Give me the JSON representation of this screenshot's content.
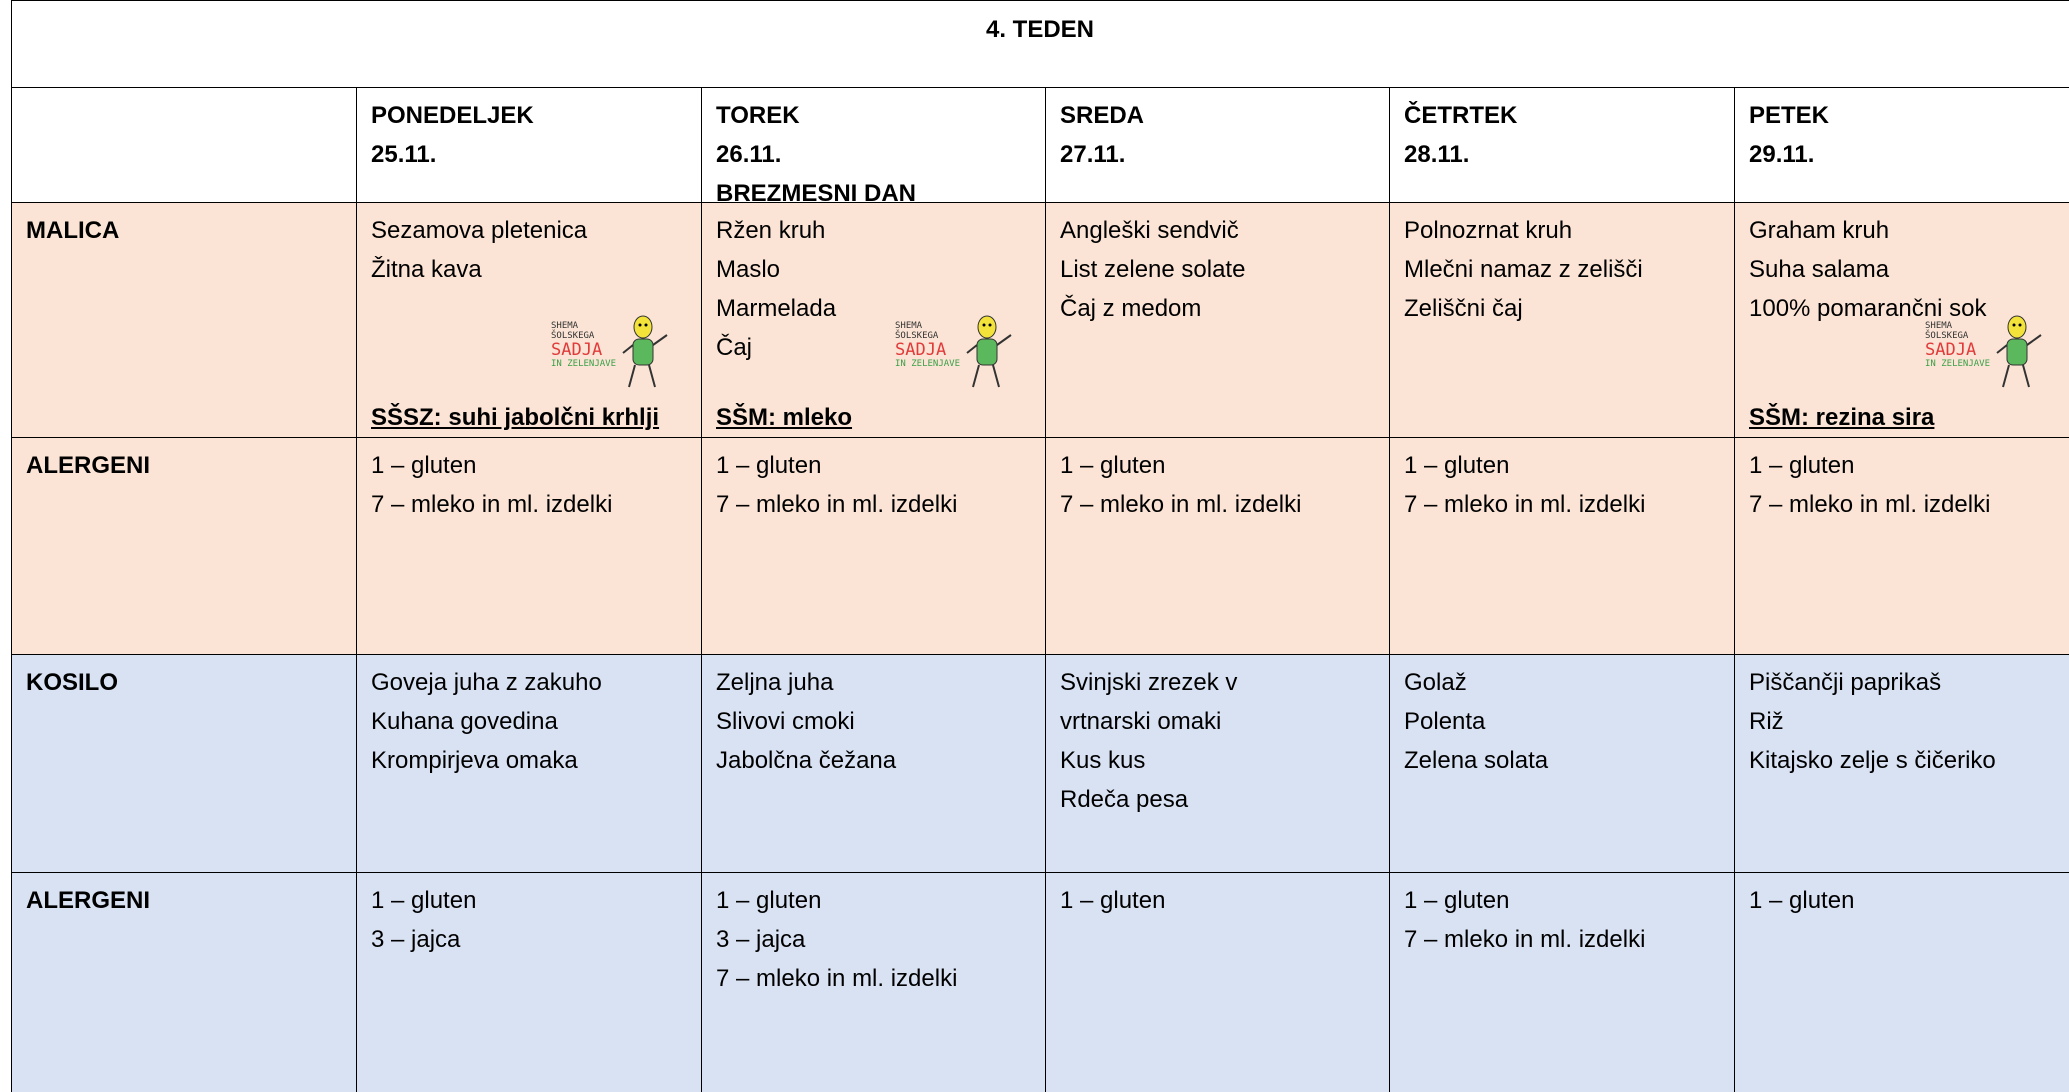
{
  "title": "4.  TEDEN",
  "days": [
    {
      "name": "PONEDELJEK",
      "date": "25.11."
    },
    {
      "name": "TOREK",
      "date": "26.11.",
      "note": "BREZMESNI DAN"
    },
    {
      "name": "SREDA",
      "date": "27.11."
    },
    {
      "name": "ČETRTEK",
      "date": "28.11."
    },
    {
      "name": "PETEK",
      "date": "29.11."
    }
  ],
  "rows": [
    {
      "label": "MALICA",
      "cells": [
        {
          "items": [
            "Sezamova pletenica",
            "Žitna kava"
          ],
          "scheme": "SŠSZ: suhi jabolčni krhlji"
        },
        {
          "items": [
            "Ržen kruh",
            "Maslo",
            "Marmelada",
            "Čaj"
          ],
          "scheme": "SŠM: mleko"
        },
        {
          "items": [
            "Angleški sendvič",
            "List zelene solate",
            "Čaj z medom"
          ]
        },
        {
          "items": [
            "Polnozrnat kruh",
            "Mlečni namaz z zelišči",
            "Zeliščni čaj"
          ]
        },
        {
          "items": [
            "Graham kruh",
            "Suha salama",
            "100% pomarančni sok"
          ],
          "scheme": "SŠM: rezina sira"
        }
      ]
    },
    {
      "label": "ALERGENI",
      "cells": [
        {
          "items": [
            "1 – gluten",
            "7 – mleko in ml. izdelki"
          ]
        },
        {
          "items": [
            "1 – gluten",
            "7 – mleko in ml. izdelki"
          ]
        },
        {
          "items": [
            "1 – gluten",
            "7 – mleko in ml. izdelki"
          ]
        },
        {
          "items": [
            "1 – gluten",
            "7 – mleko in ml. izdelki"
          ]
        },
        {
          "items": [
            "1 – gluten",
            "7 – mleko in ml. izdelki"
          ]
        }
      ]
    },
    {
      "label": "KOSILO",
      "cells": [
        {
          "items": [
            "Goveja juha z zakuho",
            "Kuhana govedina",
            "Krompirjeva omaka"
          ]
        },
        {
          "items": [
            "Zeljna juha",
            "Slivovi cmoki",
            "Jabolčna čežana"
          ]
        },
        {
          "items": [
            "Svinjski zrezek v",
            "vrtnarski omaki",
            "Kus kus",
            "Rdeča pesa"
          ]
        },
        {
          "items": [
            "Golaž",
            "Polenta",
            "Zelena solata"
          ]
        },
        {
          "items": [
            "Piščančji paprikaš",
            "Riž",
            "Kitajsko zelje s čičeriko"
          ]
        }
      ]
    },
    {
      "label": "ALERGENI",
      "cells": [
        {
          "items": [
            "1 – gluten",
            "3 – jajca"
          ]
        },
        {
          "items": [
            "1 – gluten",
            "3 – jajca",
            "7 – mleko in ml. izdelki"
          ]
        },
        {
          "items": [
            "1 – gluten"
          ]
        },
        {
          "items": [
            "1 – gluten",
            "7 – mleko in ml. izdelki"
          ]
        },
        {
          "items": [
            "1 – gluten"
          ]
        }
      ]
    }
  ],
  "logo": [
    "SHEMA",
    "ŠOLSKEGA",
    "SADJA",
    "IN ZELENJAVE"
  ]
}
